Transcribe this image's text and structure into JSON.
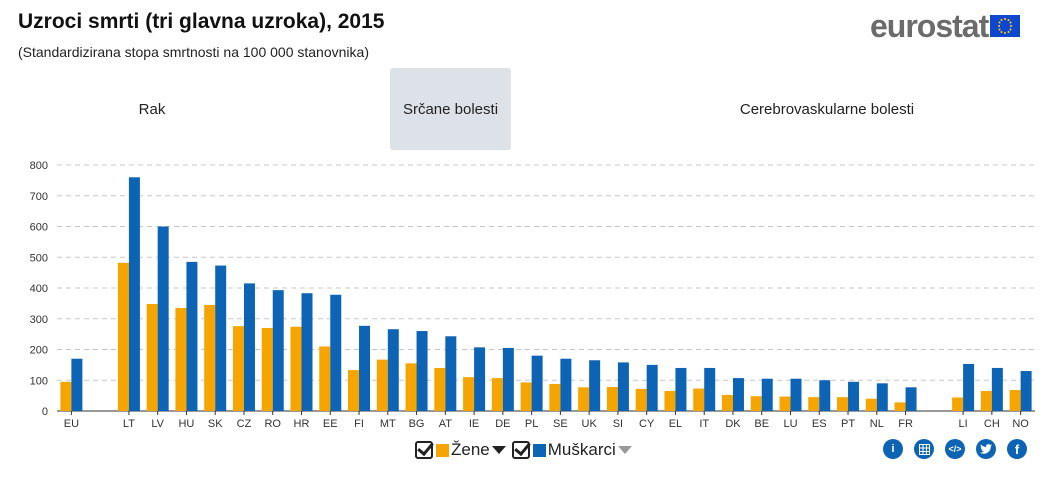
{
  "header": {
    "title": "Uzroci smrti (tri glavna uzroka), 2015",
    "subtitle": "(Standardizirana stopa smrtnosti na 100 000 stanovnika)",
    "logo_text": "eurostat"
  },
  "tabs": [
    {
      "label": "Rak",
      "active": false
    },
    {
      "label": "Srčane bolesti",
      "active": true
    },
    {
      "label": "Cerebrovaskularne bolesti",
      "active": false
    }
  ],
  "legend": {
    "women_label": "Žene",
    "men_label": "Muškarci"
  },
  "share_icons": [
    "info-icon",
    "table-icon",
    "embed-icon",
    "twitter-icon",
    "facebook-icon"
  ],
  "colors": {
    "women": "#f5a400",
    "men": "#0e64b4",
    "active_tab": "#dde2e8"
  },
  "chart_data": {
    "type": "bar",
    "title": "Uzroci smrti (tri glavna uzroka), 2015",
    "subtitle": "(Standardizirana stopa smrtnosti na 100 000 stanovnika)",
    "categories": [
      "EU",
      "",
      "LT",
      "LV",
      "HU",
      "SK",
      "CZ",
      "RO",
      "HR",
      "EE",
      "FI",
      "MT",
      "BG",
      "AT",
      "IE",
      "DE",
      "PL",
      "SE",
      "UK",
      "SI",
      "CY",
      "EL",
      "IT",
      "DK",
      "BE",
      "LU",
      "ES",
      "PT",
      "NL",
      "FR",
      "",
      "LI",
      "CH",
      "NO"
    ],
    "series": [
      {
        "name": "Žene",
        "values": [
          95,
          null,
          482,
          348,
          335,
          345,
          276,
          270,
          274,
          210,
          133,
          167,
          155,
          140,
          110,
          107,
          93,
          88,
          77,
          78,
          72,
          65,
          73,
          52,
          48,
          47,
          45,
          45,
          40,
          28,
          null,
          44,
          65,
          68
        ]
      },
      {
        "name": "Muškarci",
        "values": [
          170,
          null,
          760,
          600,
          485,
          473,
          415,
          393,
          383,
          378,
          277,
          266,
          260,
          243,
          207,
          205,
          180,
          170,
          165,
          158,
          150,
          140,
          140,
          107,
          105,
          105,
          100,
          95,
          90,
          77,
          null,
          153,
          140,
          130
        ]
      }
    ],
    "ylim": [
      0,
      800
    ],
    "yticks": [
      0,
      100,
      200,
      300,
      400,
      500,
      600,
      700,
      800
    ],
    "grid": true,
    "legend_position": "bottom"
  }
}
